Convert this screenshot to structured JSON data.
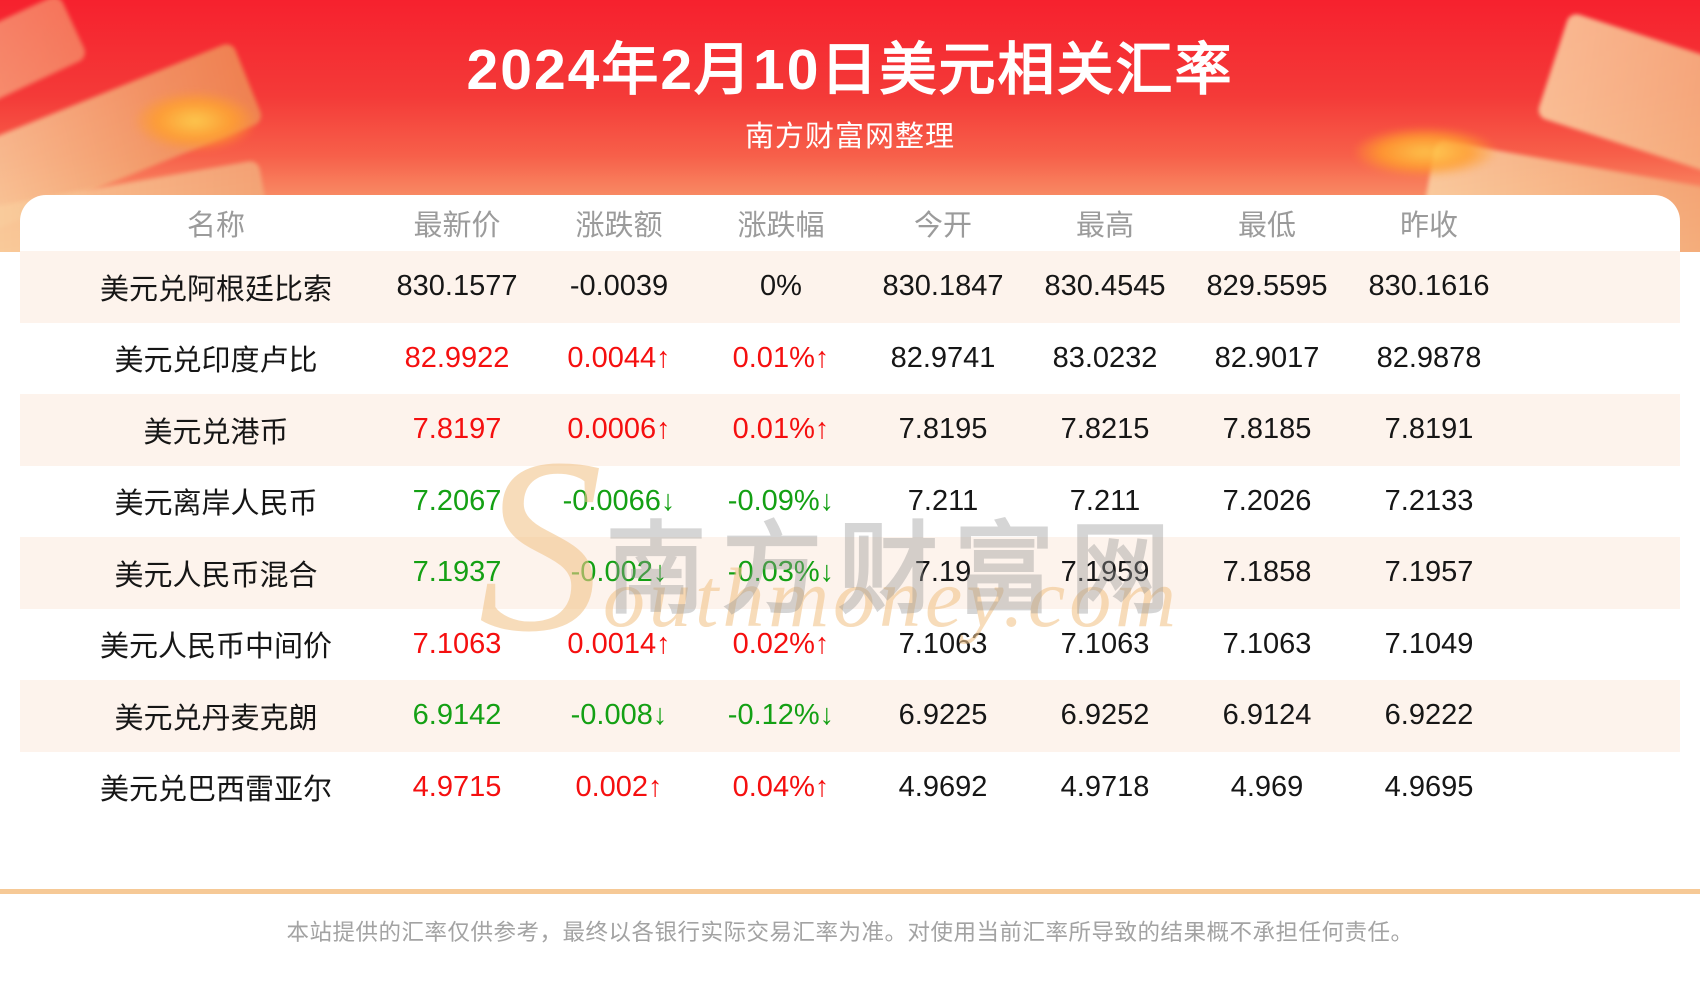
{
  "header": {
    "title": "2024年2月10日美元相关汇率",
    "subtitle": "南方财富网整理"
  },
  "table": {
    "columns": [
      "名称",
      "最新价",
      "涨跌额",
      "涨跌幅",
      "今开",
      "最高",
      "最低",
      "昨收"
    ],
    "rows": [
      {
        "name": "美元兑阿根廷比索",
        "latest": "830.1577",
        "change": "-0.0039",
        "change_pct": "0%",
        "open": "830.1847",
        "high": "830.4545",
        "low": "829.5595",
        "prev_close": "830.1616",
        "direction": "flat"
      },
      {
        "name": "美元兑印度卢比",
        "latest": "82.9922",
        "change": "0.0044↑",
        "change_pct": "0.01%↑",
        "open": "82.9741",
        "high": "83.0232",
        "low": "82.9017",
        "prev_close": "82.9878",
        "direction": "up"
      },
      {
        "name": "美元兑港币",
        "latest": "7.8197",
        "change": "0.0006↑",
        "change_pct": "0.01%↑",
        "open": "7.8195",
        "high": "7.8215",
        "low": "7.8185",
        "prev_close": "7.8191",
        "direction": "up"
      },
      {
        "name": "美元离岸人民币",
        "latest": "7.2067",
        "change": "-0.0066↓",
        "change_pct": "-0.09%↓",
        "open": "7.211",
        "high": "7.211",
        "low": "7.2026",
        "prev_close": "7.2133",
        "direction": "down"
      },
      {
        "name": "美元人民币混合",
        "latest": "7.1937",
        "change": "-0.002↓",
        "change_pct": "-0.03%↓",
        "open": "7.19",
        "high": "7.1959",
        "low": "7.1858",
        "prev_close": "7.1957",
        "direction": "down"
      },
      {
        "name": "美元人民币中间价",
        "latest": "7.1063",
        "change": "0.0014↑",
        "change_pct": "0.02%↑",
        "open": "7.1063",
        "high": "7.1063",
        "low": "7.1063",
        "prev_close": "7.1049",
        "direction": "up"
      },
      {
        "name": "美元兑丹麦克朗",
        "latest": "6.9142",
        "change": "-0.008↓",
        "change_pct": "-0.12%↓",
        "open": "6.9225",
        "high": "6.9252",
        "low": "6.9124",
        "prev_close": "6.9222",
        "direction": "down"
      },
      {
        "name": "美元兑巴西雷亚尔",
        "latest": "4.9715",
        "change": "0.002↑",
        "change_pct": "0.04%↑",
        "open": "4.9692",
        "high": "4.9718",
        "low": "4.969",
        "prev_close": "4.9695",
        "direction": "up"
      }
    ]
  },
  "watermark": {
    "cjk": "南方财富网",
    "latin_initial": "S",
    "latin_rest": "outhmoney.com"
  },
  "footer": {
    "disclaimer": "本站提供的汇率仅供参考，最终以各银行实际交易汇率为准。对使用当前汇率所导致的结果概不承担任何责任。"
  },
  "colors": {
    "up_red": "#f50f0f",
    "down_green": "#14a014",
    "hero_red_top": "#f6212e",
    "hero_red_bottom": "#f9bb8a",
    "row_alt_pink": "#fdf3ec",
    "divider_tan": "#f6c996"
  }
}
